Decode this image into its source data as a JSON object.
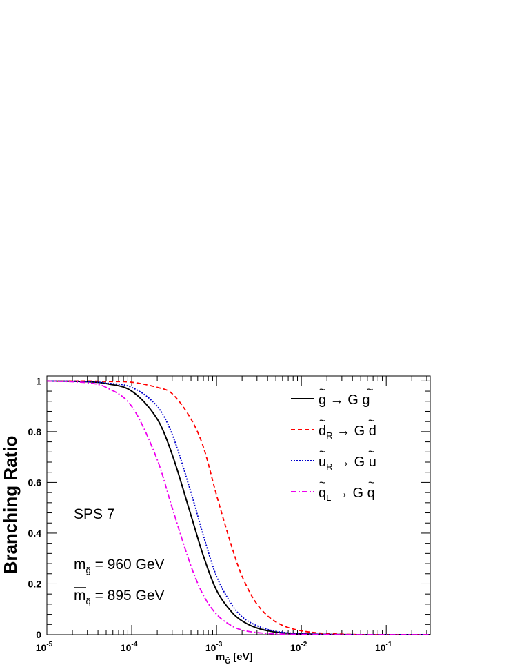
{
  "chart_data": {
    "type": "line",
    "xscale": "log",
    "xlim": [
      1e-05,
      0.33
    ],
    "ylim": [
      0,
      1.02
    ],
    "grid": false,
    "legend_position": "top-right",
    "xlabel": {
      "main": "m",
      "sub": "G̃",
      "unit": " [eV]"
    },
    "ylabel": "Branching Ratio",
    "x_ticks": [
      {
        "value": 1e-05,
        "base": "10",
        "exp": "-5"
      },
      {
        "value": 0.0001,
        "base": "10",
        "exp": "-4"
      },
      {
        "value": 0.001,
        "base": "10",
        "exp": "-3"
      },
      {
        "value": 0.01,
        "base": "10",
        "exp": "-2"
      },
      {
        "value": 0.1,
        "base": "10",
        "exp": "-1"
      }
    ],
    "y_ticks": [
      {
        "value": 0,
        "label": "0"
      },
      {
        "value": 0.2,
        "label": "0.2"
      },
      {
        "value": 0.4,
        "label": "0.4"
      },
      {
        "value": 0.6,
        "label": "0.6"
      },
      {
        "value": 0.8,
        "label": "0.8"
      },
      {
        "value": 1,
        "label": "1"
      }
    ],
    "x": [
      1e-05,
      3e-05,
      5e-05,
      0.0001,
      0.0002,
      0.0003,
      0.0005,
      0.0007,
      0.001,
      0.0015,
      0.002,
      0.003,
      0.005,
      0.01,
      0.03,
      0.1,
      0.33
    ],
    "series": [
      {
        "name": "g̃ → G̃ g",
        "color": "#000000",
        "dash": "solid",
        "values": [
          1.0,
          0.997,
          0.99,
          0.96,
          0.85,
          0.71,
          0.47,
          0.31,
          0.175,
          0.09,
          0.054,
          0.026,
          0.01,
          0.003,
          0.0005,
          0.0,
          0.0
        ]
      },
      {
        "name": "d̃R → G̃ d",
        "color": "#ff0000",
        "dash": "dashed",
        "values": [
          1.0,
          1.0,
          0.998,
          0.995,
          0.975,
          0.95,
          0.85,
          0.74,
          0.55,
          0.35,
          0.23,
          0.12,
          0.05,
          0.015,
          0.002,
          0.0,
          0.0
        ]
      },
      {
        "name": "ũR → G̃ u",
        "color": "#0000cc",
        "dash": "dotted",
        "values": [
          1.0,
          0.998,
          0.992,
          0.975,
          0.9,
          0.79,
          0.56,
          0.39,
          0.23,
          0.12,
          0.07,
          0.035,
          0.013,
          0.004,
          0.0005,
          0.0,
          0.0
        ]
      },
      {
        "name": "q̃L → G̃ q",
        "color": "#ee00ee",
        "dash": "dashdot",
        "values": [
          1.0,
          0.993,
          0.975,
          0.9,
          0.69,
          0.5,
          0.27,
          0.155,
          0.08,
          0.035,
          0.018,
          0.008,
          0.003,
          0.001,
          0.0,
          0.0,
          0.0
        ]
      }
    ],
    "legend": [
      {
        "tilde": "g",
        "sub": "",
        "product": "G",
        "quark": "g"
      },
      {
        "tilde": "d",
        "sub": "R",
        "product": "G",
        "quark": "d"
      },
      {
        "tilde": "u",
        "sub": "R",
        "product": "G",
        "quark": "u"
      },
      {
        "tilde": "q",
        "sub": "L",
        "product": "G",
        "quark": "q"
      }
    ],
    "annotations": {
      "scenario": "SPS 7",
      "gluino_mass": {
        "m": "m",
        "sub": "g̃",
        "value": "= 960 GeV"
      },
      "squark_mass": {
        "m": "m",
        "sub": "q̃",
        "value": "= 895 GeV"
      }
    }
  }
}
